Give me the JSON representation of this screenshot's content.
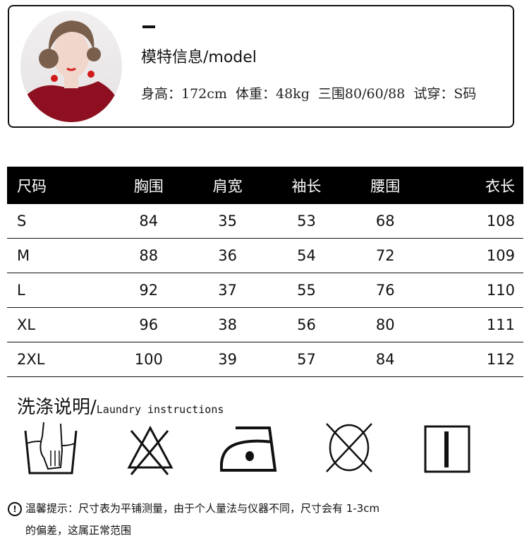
{
  "model": {
    "title": "模特信息/model",
    "stats": "身高：172cm  体重：48kg  三围80/60/88  试穿：S码"
  },
  "size_table": {
    "headers": [
      "尺码",
      "胸围",
      "肩宽",
      "袖长",
      "腰围",
      "衣长"
    ],
    "rows": [
      [
        "S",
        "84",
        "35",
        "53",
        "68",
        "108"
      ],
      [
        "M",
        "88",
        "36",
        "54",
        "72",
        "109"
      ],
      [
        "L",
        "92",
        "37",
        "55",
        "76",
        "110"
      ],
      [
        "XL",
        "96",
        "38",
        "56",
        "80",
        "111"
      ],
      [
        "2XL",
        "100",
        "39",
        "57",
        "84",
        "112"
      ]
    ]
  },
  "laundry": {
    "title_cn": "洗涤说明/",
    "title_en": "Laundry instructions",
    "icons": [
      "hand-wash-icon",
      "do-not-bleach-icon",
      "iron-low-heat-icon",
      "do-not-tumble-dry-icon",
      "line-dry-icon"
    ]
  },
  "notice": {
    "icon": "exclamation-circle-icon",
    "line1": "温馨提示：尺寸表为平铺测量，由于个人量法与仪器不同，尺寸会有 1-3cm",
    "line2": "的偏差，这属正常范围"
  }
}
